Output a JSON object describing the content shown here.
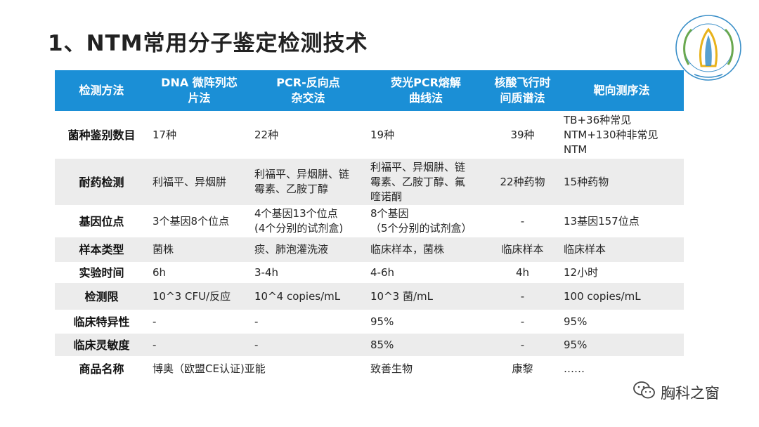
{
  "title": "1、NTM常用分子鉴定检测技术",
  "logo": {
    "icon": "organization-seal-logo",
    "colors": {
      "ring": "#3a8fc8",
      "leaf": "#6aa84f",
      "accent": "#e8b21a"
    }
  },
  "table": {
    "header_color": "#1b8fd6",
    "headers": [
      [
        "检测方法"
      ],
      [
        "DNA 微阵列芯",
        "片法"
      ],
      [
        "PCR-反向点",
        "杂交法"
      ],
      [
        "荧光PCR熔解",
        "曲线法"
      ],
      [
        "核酸飞行时",
        "间质谱法"
      ],
      [
        "靶向测序法"
      ]
    ],
    "rows": [
      {
        "label": "菌种鉴别数目",
        "cells": [
          [
            "17种"
          ],
          [
            "22种"
          ],
          [
            "19种"
          ],
          [
            "39种"
          ],
          [
            "TB+36种常见",
            "NTM+130种非常见",
            "NTM"
          ]
        ]
      },
      {
        "label": "耐药检测",
        "cells": [
          [
            "利福平、异烟肼"
          ],
          [
            "利福平、异烟肼、链",
            "霉素、乙胺丁醇"
          ],
          [
            "利福平、异烟肼、链",
            "霉素、乙胺丁醇、氟",
            "喹诺酮"
          ],
          [
            "22种药物"
          ],
          [
            "15种药物"
          ]
        ]
      },
      {
        "label": "基因位点",
        "cells": [
          [
            "3个基因8个位点"
          ],
          [
            "4个基因13个位点",
            "(4个分别的试剂盒)"
          ],
          [
            "8个基因",
            "（5个分别的试剂盒）"
          ],
          [
            "-"
          ],
          [
            "13基因157位点"
          ]
        ]
      },
      {
        "label": "样本类型",
        "cells": [
          [
            "菌株"
          ],
          [
            "痰、肺泡灌洗液"
          ],
          [
            "临床样本，菌株"
          ],
          [
            "临床样本"
          ],
          [
            "临床样本"
          ]
        ]
      },
      {
        "label": "实验时间",
        "cells": [
          [
            "6h"
          ],
          [
            "3-4h"
          ],
          [
            "4-6h"
          ],
          [
            "4h"
          ],
          [
            "12小时"
          ]
        ]
      },
      {
        "label": "检测限",
        "cells": [
          [
            "10^3 CFU/反应"
          ],
          [
            "10^4 copies/mL"
          ],
          [
            "10^3 菌/mL"
          ],
          [
            "-"
          ],
          [
            "100 copies/mL"
          ]
        ]
      },
      {
        "label": "临床特异性",
        "cells": [
          [
            "-"
          ],
          [
            "-"
          ],
          [
            "95%"
          ],
          [
            "-"
          ],
          [
            "95%"
          ]
        ]
      },
      {
        "label": "临床灵敏度",
        "cells": [
          [
            "-"
          ],
          [
            "-"
          ],
          [
            "85%"
          ],
          [
            "-"
          ],
          [
            "95%"
          ]
        ]
      }
    ],
    "last_row": {
      "label": "商品名称",
      "merged_cell": "博奥（欧盟CE认证)亚能",
      "c3": "致善生物",
      "c4": "康黎",
      "c5": "……"
    }
  },
  "watermark": {
    "icon": "wechat-icon",
    "text": "胸科之窗"
  }
}
